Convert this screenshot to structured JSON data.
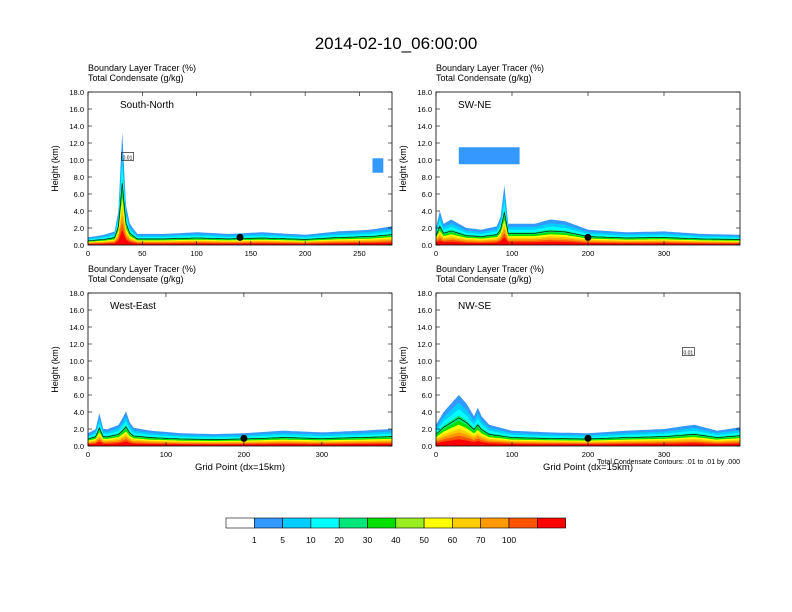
{
  "figure": {
    "title": "2014-02-10_06:00:00",
    "contour_note": "Total Condensate Contours: .01 to .01 by .000"
  },
  "chart_data": [
    {
      "type": "heatmap",
      "name": "South-North",
      "label": "South-North",
      "subtitle_line1": "Boundary Layer Tracer   (%)",
      "subtitle_line2": "Total Condensate   (g/kg)",
      "ylabel": "Height (km)",
      "xlabel": "",
      "xlim": [
        0,
        280
      ],
      "ylim": [
        0,
        18
      ],
      "xticks": [
        0,
        50,
        100,
        150,
        200,
        250
      ],
      "yticks": [
        0.0,
        2.0,
        4.0,
        6.0,
        8.0,
        10.0,
        12.0,
        14.0,
        16.0,
        18.0
      ],
      "marker_x": 140,
      "box_label": "0.01",
      "base_profile": [
        [
          0,
          0.9
        ],
        [
          15,
          1.2
        ],
        [
          25,
          1.6
        ],
        [
          28,
          4
        ],
        [
          30,
          8
        ],
        [
          31,
          15
        ],
        [
          33,
          8
        ],
        [
          36,
          3
        ],
        [
          45,
          1.3
        ],
        [
          70,
          1.3
        ],
        [
          100,
          1.5
        ],
        [
          130,
          1.3
        ],
        [
          160,
          1.5
        ],
        [
          200,
          1.2
        ],
        [
          230,
          1.6
        ],
        [
          260,
          1.8
        ],
        [
          280,
          2.2
        ]
      ],
      "patches": [
        [
          262,
          272,
          8.5,
          10.2
        ]
      ]
    },
    {
      "type": "heatmap",
      "name": "SW-NE",
      "label": "SW-NE",
      "subtitle_line1": "Boundary Layer Tracer   (%)",
      "subtitle_line2": "Total Condensate   (g/kg)",
      "ylabel": "Height (km)",
      "xlabel": "",
      "xlim": [
        0,
        400
      ],
      "ylim": [
        0,
        18
      ],
      "xticks": [
        0,
        100,
        200,
        300
      ],
      "yticks": [
        0.0,
        2.0,
        4.0,
        6.0,
        8.0,
        10.0,
        12.0,
        14.0,
        16.0,
        18.0
      ],
      "marker_x": 200,
      "box_label": "",
      "base_profile": [
        [
          0,
          2
        ],
        [
          5,
          4
        ],
        [
          10,
          2.5
        ],
        [
          20,
          3
        ],
        [
          40,
          2
        ],
        [
          60,
          1.8
        ],
        [
          80,
          2.2
        ],
        [
          88,
          4
        ],
        [
          90,
          7
        ],
        [
          92,
          4.5
        ],
        [
          95,
          2.5
        ],
        [
          130,
          2.5
        ],
        [
          150,
          3
        ],
        [
          170,
          2.8
        ],
        [
          200,
          1.8
        ],
        [
          250,
          1.5
        ],
        [
          300,
          1.6
        ],
        [
          350,
          1.3
        ],
        [
          400,
          1.2
        ]
      ],
      "patches": [
        [
          30,
          110,
          9.5,
          11.5
        ]
      ]
    },
    {
      "type": "heatmap",
      "name": "West-East",
      "label": "West-East",
      "subtitle_line1": "Boundary Layer Tracer   (%)",
      "subtitle_line2": "Total Condensate   (g/kg)",
      "ylabel": "Height (km)",
      "xlabel": "Grid Point (dx=15km)",
      "xlim": [
        0,
        390
      ],
      "ylim": [
        0,
        18
      ],
      "xticks": [
        0,
        100,
        200,
        300
      ],
      "yticks": [
        0.0,
        2.0,
        4.0,
        6.0,
        8.0,
        10.0,
        12.0,
        14.0,
        16.0,
        18.0
      ],
      "marker_x": 200,
      "box_label": "",
      "base_profile": [
        [
          0,
          1.5
        ],
        [
          10,
          2
        ],
        [
          15,
          4
        ],
        [
          20,
          1.8
        ],
        [
          40,
          2.5
        ],
        [
          50,
          4.3
        ],
        [
          55,
          2.2
        ],
        [
          80,
          1.8
        ],
        [
          120,
          1.5
        ],
        [
          160,
          1.4
        ],
        [
          200,
          1.5
        ],
        [
          250,
          1.8
        ],
        [
          300,
          1.6
        ],
        [
          350,
          1.8
        ],
        [
          390,
          2
        ]
      ],
      "patches": []
    },
    {
      "type": "heatmap",
      "name": "NW-SE",
      "label": "NW-SE",
      "subtitle_line1": "Boundary Layer Tracer   (%)",
      "subtitle_line2": "Total Condensate   (g/kg)",
      "ylabel": "Height (km)",
      "xlabel": "Grid Point (dx=15km)",
      "xlim": [
        0,
        400
      ],
      "ylim": [
        0,
        18
      ],
      "xticks": [
        0,
        100,
        200,
        300
      ],
      "yticks": [
        0.0,
        2.0,
        4.0,
        6.0,
        8.0,
        10.0,
        12.0,
        14.0,
        16.0,
        18.0
      ],
      "marker_x": 200,
      "box_label": "0.01",
      "base_profile": [
        [
          0,
          2.5
        ],
        [
          10,
          4
        ],
        [
          20,
          5
        ],
        [
          30,
          6
        ],
        [
          40,
          5
        ],
        [
          50,
          3.5
        ],
        [
          55,
          4.5
        ],
        [
          60,
          3.5
        ],
        [
          70,
          2.5
        ],
        [
          100,
          1.8
        ],
        [
          150,
          1.6
        ],
        [
          200,
          1.5
        ],
        [
          250,
          1.8
        ],
        [
          300,
          2
        ],
        [
          340,
          2.5
        ],
        [
          370,
          1.8
        ],
        [
          400,
          2.2
        ]
      ],
      "patches": []
    }
  ],
  "colorbar": {
    "colors": [
      "#ffffff",
      "#3399ff",
      "#00ccff",
      "#00ffff",
      "#00e87a",
      "#00e000",
      "#99ee22",
      "#ffff00",
      "#ffcc00",
      "#ff9900",
      "#ff5500",
      "#ff0000"
    ],
    "labels": [
      "1",
      "5",
      "10",
      "20",
      "30",
      "40",
      "50",
      "60",
      "70",
      "100"
    ]
  }
}
